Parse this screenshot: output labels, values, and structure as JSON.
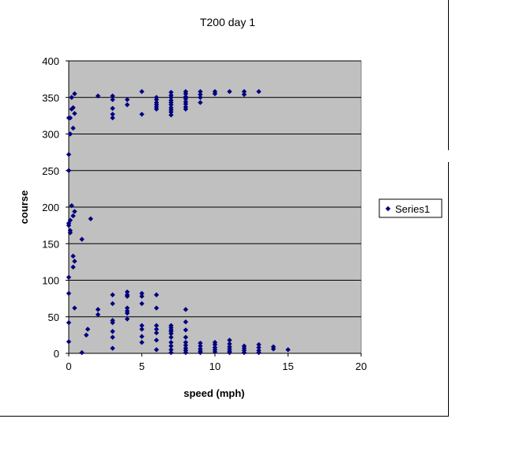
{
  "colors": {
    "plot_background": "#c0c0c0",
    "marker": "#000080",
    "gridline": "#000000",
    "page_background": "#ffffff"
  },
  "legend": {
    "position": "right",
    "entries": [
      "Series1"
    ]
  },
  "chart_data": {
    "type": "scatter",
    "title": "T200 day 1",
    "xlabel": "speed (mph)",
    "ylabel": "course",
    "xlim": [
      0,
      20
    ],
    "ylim": [
      0,
      400
    ],
    "xticks": [
      0,
      5,
      10,
      15,
      20
    ],
    "yticks": [
      0,
      50,
      100,
      150,
      200,
      250,
      300,
      350,
      400
    ],
    "grid": {
      "horizontal": true,
      "vertical": false
    },
    "marker": "diamond",
    "series": [
      {
        "name": "Series1",
        "points": [
          [
            0,
            104
          ],
          [
            0,
            82
          ],
          [
            0,
            42
          ],
          [
            0,
            16
          ],
          [
            0,
            175
          ],
          [
            0,
            178
          ],
          [
            0,
            250
          ],
          [
            0,
            272
          ],
          [
            0,
            322
          ],
          [
            0.1,
            168
          ],
          [
            0.1,
            165
          ],
          [
            0.1,
            182
          ],
          [
            0.1,
            300
          ],
          [
            0.1,
            322
          ],
          [
            0.2,
            350
          ],
          [
            0.2,
            334
          ],
          [
            0.3,
            308
          ],
          [
            0.2,
            202
          ],
          [
            0.3,
            336
          ],
          [
            0.3,
            188
          ],
          [
            0.4,
            194
          ],
          [
            0.3,
            133
          ],
          [
            0.3,
            118
          ],
          [
            0.4,
            126
          ],
          [
            0.4,
            328
          ],
          [
            0.4,
            355
          ],
          [
            0.4,
            62
          ],
          [
            0.9,
            156
          ],
          [
            0.9,
            1
          ],
          [
            1.2,
            25
          ],
          [
            1.3,
            33
          ],
          [
            1.5,
            184
          ],
          [
            2,
            53
          ],
          [
            2,
            60
          ],
          [
            2,
            352
          ],
          [
            3,
            352
          ],
          [
            3,
            347
          ],
          [
            3,
            335
          ],
          [
            3,
            327
          ],
          [
            3,
            322
          ],
          [
            3,
            80
          ],
          [
            3,
            68
          ],
          [
            3,
            45
          ],
          [
            3,
            42
          ],
          [
            3,
            30
          ],
          [
            3,
            22
          ],
          [
            3,
            7
          ],
          [
            4,
            84
          ],
          [
            4,
            80
          ],
          [
            4,
            78
          ],
          [
            4,
            62
          ],
          [
            4,
            58
          ],
          [
            4,
            55
          ],
          [
            4,
            47
          ],
          [
            4,
            347
          ],
          [
            4,
            340
          ],
          [
            5,
            82
          ],
          [
            5,
            78
          ],
          [
            5,
            68
          ],
          [
            5,
            38
          ],
          [
            5,
            33
          ],
          [
            5,
            23
          ],
          [
            5,
            15
          ],
          [
            5,
            358
          ],
          [
            5,
            327
          ],
          [
            6,
            80
          ],
          [
            6,
            62
          ],
          [
            6,
            38
          ],
          [
            6,
            33
          ],
          [
            6,
            28
          ],
          [
            6,
            18
          ],
          [
            6,
            5
          ],
          [
            6,
            350
          ],
          [
            6,
            347
          ],
          [
            6,
            343
          ],
          [
            6,
            340
          ],
          [
            6,
            337
          ],
          [
            6,
            334
          ],
          [
            7,
            38
          ],
          [
            7,
            35
          ],
          [
            7,
            32
          ],
          [
            7,
            30
          ],
          [
            7,
            27
          ],
          [
            7,
            22
          ],
          [
            7,
            15
          ],
          [
            7,
            10
          ],
          [
            7,
            5
          ],
          [
            7,
            1
          ],
          [
            7,
            357
          ],
          [
            7,
            353
          ],
          [
            7,
            350
          ],
          [
            7,
            346
          ],
          [
            7,
            343
          ],
          [
            7,
            340
          ],
          [
            7,
            336
          ],
          [
            7,
            333
          ],
          [
            7,
            330
          ],
          [
            7,
            326
          ],
          [
            8,
            60
          ],
          [
            8,
            43
          ],
          [
            8,
            32
          ],
          [
            8,
            22
          ],
          [
            8,
            15
          ],
          [
            8,
            11
          ],
          [
            8,
            7
          ],
          [
            8,
            4
          ],
          [
            8,
            1
          ],
          [
            8,
            358
          ],
          [
            8,
            355
          ],
          [
            8,
            351
          ],
          [
            8,
            348
          ],
          [
            8,
            344
          ],
          [
            8,
            341
          ],
          [
            8,
            337
          ],
          [
            8,
            334
          ],
          [
            9,
            14
          ],
          [
            9,
            10
          ],
          [
            9,
            6
          ],
          [
            9,
            3
          ],
          [
            9,
            1
          ],
          [
            9,
            358
          ],
          [
            9,
            354
          ],
          [
            9,
            350
          ],
          [
            9,
            343
          ],
          [
            10,
            15
          ],
          [
            10,
            12
          ],
          [
            10,
            8
          ],
          [
            10,
            5
          ],
          [
            10,
            2
          ],
          [
            10,
            358
          ],
          [
            10,
            355
          ],
          [
            11,
            18
          ],
          [
            11,
            13
          ],
          [
            11,
            9
          ],
          [
            11,
            6
          ],
          [
            11,
            3
          ],
          [
            11,
            1
          ],
          [
            11,
            358
          ],
          [
            12,
            10
          ],
          [
            12,
            7
          ],
          [
            12,
            4
          ],
          [
            12,
            1
          ],
          [
            12,
            358
          ],
          [
            12,
            354
          ],
          [
            13,
            12
          ],
          [
            13,
            8
          ],
          [
            13,
            4
          ],
          [
            13,
            1
          ],
          [
            13,
            358
          ],
          [
            14,
            9
          ],
          [
            14,
            6
          ],
          [
            15,
            5
          ]
        ]
      }
    ]
  }
}
